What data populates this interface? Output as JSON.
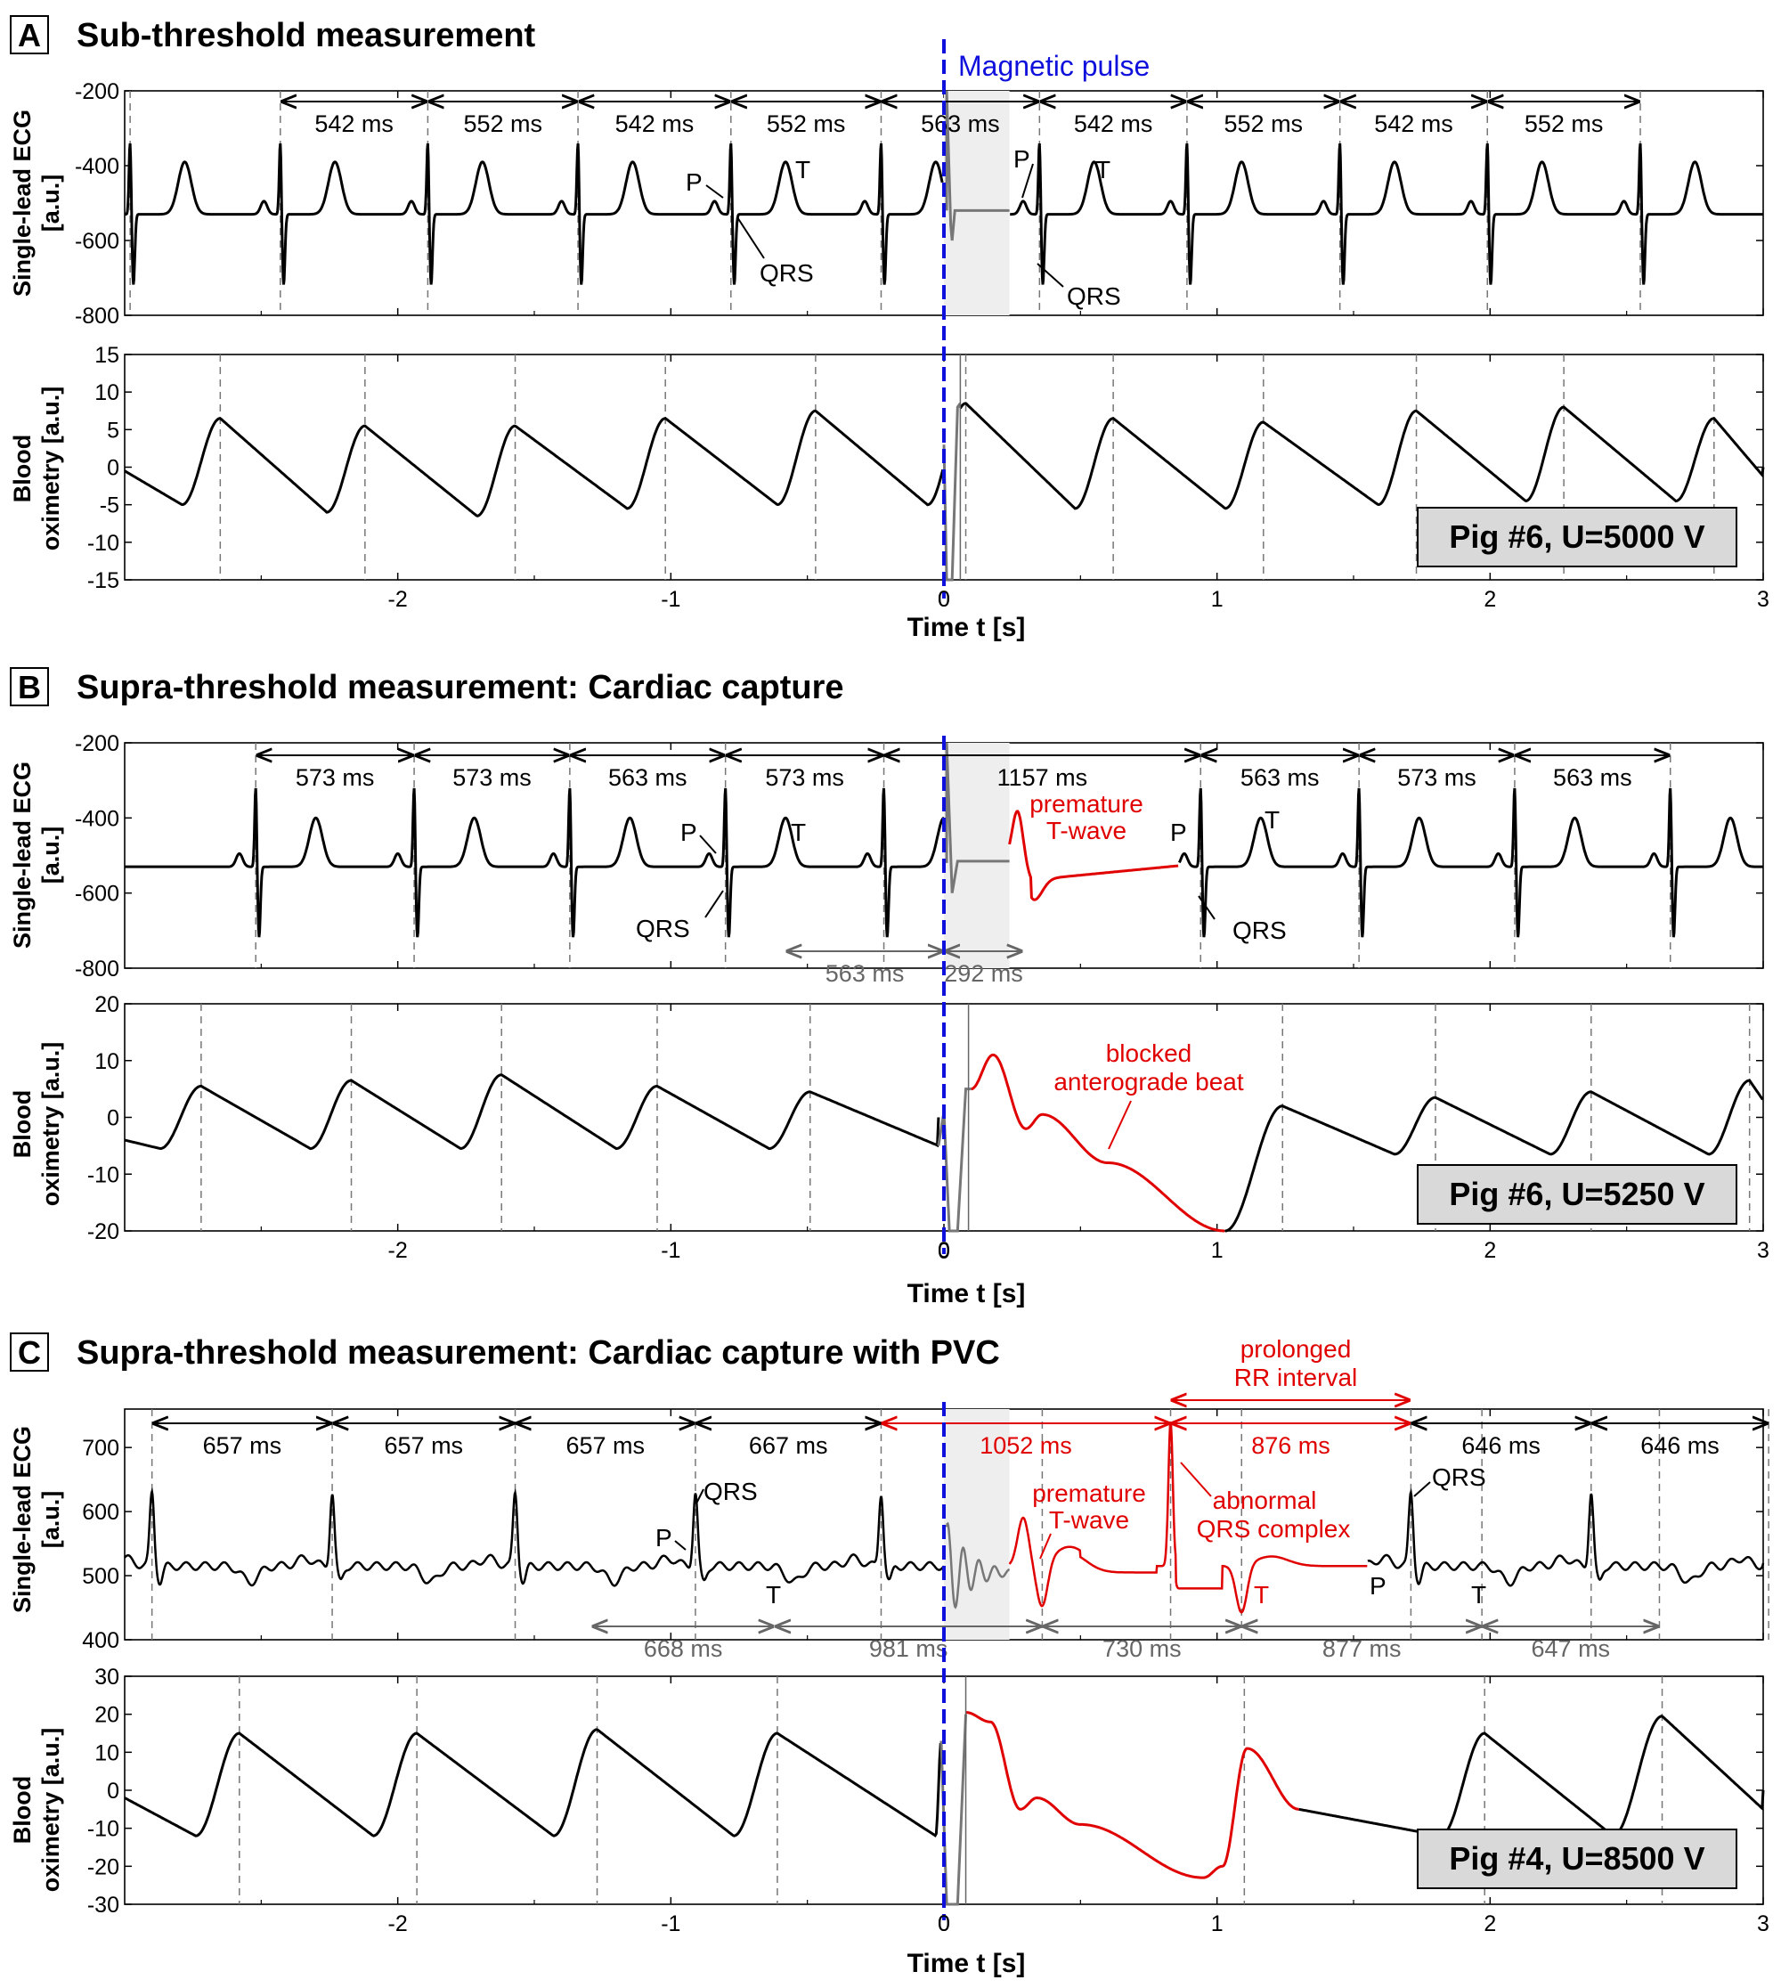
{
  "chart_data": [
    {
      "type": "line",
      "panel": "A",
      "title": "Sub-threshold measurement",
      "xlabel": "Time t [s]",
      "xlim": [
        -3,
        3
      ],
      "xticks": [
        -2,
        -1,
        0,
        1,
        2,
        3
      ],
      "pulse_label": "Magnetic pulse",
      "pulse_color": "#1010dd",
      "pig_label": "Pig #6, U=5000 V",
      "ecg": {
        "ylabel": [
          "Single-lead ECG",
          "[a.u.]"
        ],
        "ylim": [
          -800,
          -200
        ],
        "yticks": [
          -200,
          -400,
          -600,
          -800
        ],
        "baseline": -530,
        "qrs_times": [
          -2.98,
          -2.43,
          -1.89,
          -1.34,
          -0.78,
          -0.23,
          0.35,
          0.89,
          1.45,
          1.99,
          2.55
        ],
        "qrs_peak": -330,
        "qrs_trough": -720,
        "t_offset": 0.2,
        "t_peak": -390,
        "gap": [
          0,
          0.24
        ],
        "intervals": [
          {
            "from": -2.43,
            "to": -1.89,
            "label": "542 ms"
          },
          {
            "from": -1.89,
            "to": -1.34,
            "label": "552 ms"
          },
          {
            "from": -1.34,
            "to": -0.78,
            "label": "542 ms"
          },
          {
            "from": -0.78,
            "to": -0.23,
            "label": "552 ms"
          },
          {
            "from": -0.23,
            "to": 0.35,
            "label": "563 ms"
          },
          {
            "from": 0.35,
            "to": 0.89,
            "label": "542 ms"
          },
          {
            "from": 0.89,
            "to": 1.45,
            "label": "552 ms"
          },
          {
            "from": 1.45,
            "to": 1.99,
            "label": "542 ms"
          },
          {
            "from": 1.99,
            "to": 2.55,
            "label": "552 ms"
          }
        ],
        "labels": {
          "p": "P",
          "t": "T",
          "qrs": "QRS"
        }
      },
      "ox": {
        "ylabel": [
          "Blood",
          "oximetry [a.u.]"
        ],
        "ylim": [
          -15,
          15
        ],
        "yticks": [
          15,
          10,
          5,
          0,
          -5,
          -10,
          -15
        ],
        "peak_times": [
          -2.65,
          -2.12,
          -1.57,
          -1.02,
          -0.47,
          0.08,
          0.62,
          1.17,
          1.73,
          2.27,
          2.82
        ],
        "peak_values": [
          6.5,
          5.5,
          5.5,
          6.5,
          7.5,
          8.5,
          6.5,
          6.0,
          7.5,
          8.0,
          6.5
        ],
        "trough_values": [
          -5,
          -6,
          -6.5,
          -5.5,
          -5,
          -5,
          -5.5,
          -5.5,
          -5,
          -4.5,
          -4.5,
          -1
        ]
      }
    },
    {
      "type": "line",
      "panel": "B",
      "title": "Supra-threshold measurement: Cardiac capture",
      "xlabel": "Time t [s]",
      "xlim": [
        -3,
        3
      ],
      "xticks": [
        -2,
        -1,
        0,
        1,
        2,
        3
      ],
      "pig_label": "Pig #6, U=5250 V",
      "ecg": {
        "ylabel": [
          "Single-lead ECG",
          "[a.u.]"
        ],
        "ylim": [
          -800,
          -200
        ],
        "yticks": [
          -200,
          -400,
          -600,
          -800
        ],
        "baseline": -530,
        "qrs_times": [
          -2.52,
          -1.94,
          -1.37,
          -0.8,
          -0.22,
          0.94,
          1.52,
          2.09,
          2.66
        ],
        "qrs_peak": -310,
        "qrs_trough": -720,
        "t_offset": 0.22,
        "t_peak": -400,
        "gap": [
          0,
          0.24
        ],
        "intervals": [
          {
            "from": -2.52,
            "to": -1.94,
            "label": "573 ms"
          },
          {
            "from": -1.94,
            "to": -1.37,
            "label": "573 ms"
          },
          {
            "from": -1.37,
            "to": -0.8,
            "label": "563 ms"
          },
          {
            "from": -0.8,
            "to": -0.22,
            "label": "573 ms"
          },
          {
            "from": -0.22,
            "to": 0.94,
            "label": "1157 ms"
          },
          {
            "from": 0.94,
            "to": 1.52,
            "label": "563 ms"
          },
          {
            "from": 1.52,
            "to": 2.09,
            "label": "573 ms"
          },
          {
            "from": 2.09,
            "to": 2.66,
            "label": "563 ms"
          }
        ],
        "gray_intervals": [
          {
            "from": -0.58,
            "to": 0.0,
            "label": "563 ms"
          },
          {
            "from": 0.0,
            "to": 0.29,
            "label": "292 ms"
          }
        ],
        "red_annotation": [
          "premature",
          "T-wave"
        ],
        "labels": {
          "p": "P",
          "t": "T",
          "qrs": "QRS"
        }
      },
      "ox": {
        "ylabel": [
          "Blood",
          "oximetry [a.u.]"
        ],
        "ylim": [
          -20,
          20
        ],
        "yticks": [
          20,
          10,
          0,
          -10,
          -20
        ],
        "red_annotation": [
          "blocked",
          "anterograde beat"
        ],
        "peak_times": [
          -2.72,
          -2.17,
          -1.62,
          -1.05,
          -0.49,
          1.24,
          1.8,
          2.37,
          2.95
        ],
        "peak_values": [
          5.5,
          6.5,
          7.5,
          5.5,
          4.5,
          2,
          3.5,
          4.5,
          6.5
        ]
      }
    },
    {
      "type": "line",
      "panel": "C",
      "title": "Supra-threshold measurement: Cardiac capture with PVC",
      "xlabel": "Time t [s]",
      "xlim": [
        -3,
        3
      ],
      "xticks": [
        -2,
        -1,
        0,
        1,
        2,
        3
      ],
      "pig_label": "Pig #4, U=8500 V",
      "ecg": {
        "ylabel": [
          "Single-lead ECG",
          "[a.u.]"
        ],
        "ylim": [
          400,
          760
        ],
        "yticks": [
          700,
          600,
          500,
          400
        ],
        "baseline": 515,
        "qrs_times": [
          -2.9,
          -2.24,
          -1.57,
          -0.91,
          -0.23,
          1.71,
          2.37,
          3.02
        ],
        "qrs_peak": 630,
        "intervals": [
          {
            "from": -2.9,
            "to": -2.24,
            "label": "657 ms"
          },
          {
            "from": -2.24,
            "to": -1.57,
            "label": "657 ms"
          },
          {
            "from": -1.57,
            "to": -0.91,
            "label": "657 ms"
          },
          {
            "from": -0.91,
            "to": -0.23,
            "label": "667 ms"
          },
          {
            "from": 1.71,
            "to": 2.37,
            "label": "646 ms"
          },
          {
            "from": 2.37,
            "to": 3.02,
            "label": "646 ms"
          }
        ],
        "red_intervals": [
          {
            "from": -0.23,
            "to": 0.83,
            "label": "1052 ms"
          },
          {
            "from": 0.83,
            "to": 1.71,
            "label": "876 ms"
          }
        ],
        "gray_intervals": [
          {
            "from": -1.29,
            "to": -0.62,
            "label": "668 ms"
          },
          {
            "from": -0.62,
            "to": 0.36,
            "label": "981 ms"
          },
          {
            "from": 0.36,
            "to": 1.09,
            "label": "730 ms"
          },
          {
            "from": 1.09,
            "to": 1.97,
            "label": "877 ms"
          },
          {
            "from": 1.97,
            "to": 2.62,
            "label": "647 ms"
          }
        ],
        "red_top": [
          "prolonged",
          "RR interval"
        ],
        "red_tw": [
          "premature",
          "T-wave"
        ],
        "red_qrs": [
          "abnormal",
          "QRS complex"
        ],
        "labels": {
          "p": "P",
          "t": "T",
          "qrs": "QRS",
          "qrs2": "QRS",
          "t_red": "T",
          "p2": "P",
          "t2": "T"
        }
      },
      "ox": {
        "ylabel": [
          "Blood",
          "oximetry [a.u.]"
        ],
        "ylim": [
          -30,
          30
        ],
        "yticks": [
          30,
          20,
          10,
          0,
          -10,
          -20,
          -30
        ],
        "peak_times": [
          -2.58,
          -1.93,
          -1.27,
          -0.61,
          1.98,
          2.63
        ],
        "peak_values": [
          15,
          15,
          16,
          15,
          15,
          19.5
        ]
      }
    }
  ]
}
